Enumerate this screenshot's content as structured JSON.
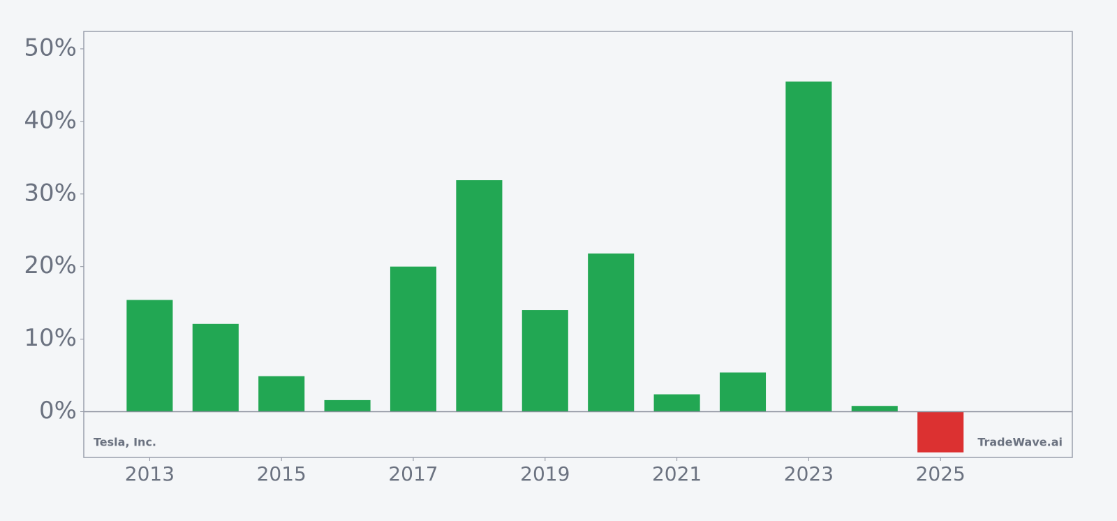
{
  "chart_data": {
    "type": "bar",
    "x": [
      2013,
      2014,
      2015,
      2016,
      2017,
      2018,
      2019,
      2020,
      2021,
      2022,
      2023,
      2024,
      2025
    ],
    "values": [
      15.4,
      12.1,
      4.9,
      1.6,
      20.0,
      31.9,
      14.0,
      21.8,
      2.4,
      5.4,
      45.5,
      0.8,
      -5.6
    ],
    "colors": [
      "#22a753",
      "#22a753",
      "#22a753",
      "#22a753",
      "#22a753",
      "#22a753",
      "#22a753",
      "#22a753",
      "#22a753",
      "#22a753",
      "#22a753",
      "#22a753",
      "#dc3131"
    ],
    "xlim": [
      2012,
      2027
    ],
    "xticks": [
      2013,
      2015,
      2017,
      2019,
      2021,
      2023,
      2025
    ],
    "ylim": [
      -6.3,
      52.4
    ],
    "yticks": [
      {
        "value": 0,
        "label": "0%"
      },
      {
        "value": 10,
        "label": "10%"
      },
      {
        "value": 20,
        "label": "20%"
      },
      {
        "value": 30,
        "label": "30%"
      },
      {
        "value": 40,
        "label": "40%"
      },
      {
        "value": 50,
        "label": "50%"
      }
    ],
    "annotations": [
      "Tesla, Inc.",
      "TradeWave.ai"
    ]
  }
}
